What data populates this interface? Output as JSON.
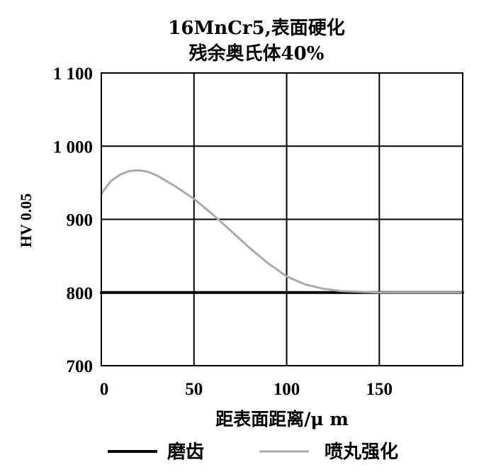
{
  "chart_data": {
    "type": "line",
    "title": [
      "16MnCr5,表面硬化",
      "残余奥氏体40%"
    ],
    "xlabel": "距表面距离/μ m",
    "ylabel": "HV 0.05",
    "xlim": [
      0,
      195
    ],
    "ylim": [
      700,
      1100
    ],
    "x_ticks": [
      0,
      50,
      100,
      150
    ],
    "x_tick_labels": [
      "0",
      "50",
      "100",
      "150"
    ],
    "y_ticks": [
      700,
      800,
      900,
      1000,
      1100
    ],
    "y_tick_labels": [
      "700",
      "800",
      "900",
      "1 000",
      "1 100"
    ],
    "grid": true,
    "legend_position": "bottom",
    "series": [
      {
        "name": "磨齿",
        "color": "#000000",
        "x": [
          0,
          195
        ],
        "y": [
          800,
          800
        ]
      },
      {
        "name": "喷丸强化",
        "color": "#aaaaaa",
        "x": [
          0,
          5,
          10,
          15,
          20,
          25,
          30,
          40,
          50,
          60,
          70,
          80,
          90,
          100,
          110,
          120,
          130,
          140,
          150,
          160,
          170,
          180,
          195
        ],
        "y": [
          935,
          952,
          961,
          966,
          967,
          965,
          960,
          945,
          928,
          907,
          884,
          861,
          840,
          822,
          811,
          805,
          802,
          801,
          800,
          800,
          800,
          800,
          800
        ]
      }
    ]
  }
}
